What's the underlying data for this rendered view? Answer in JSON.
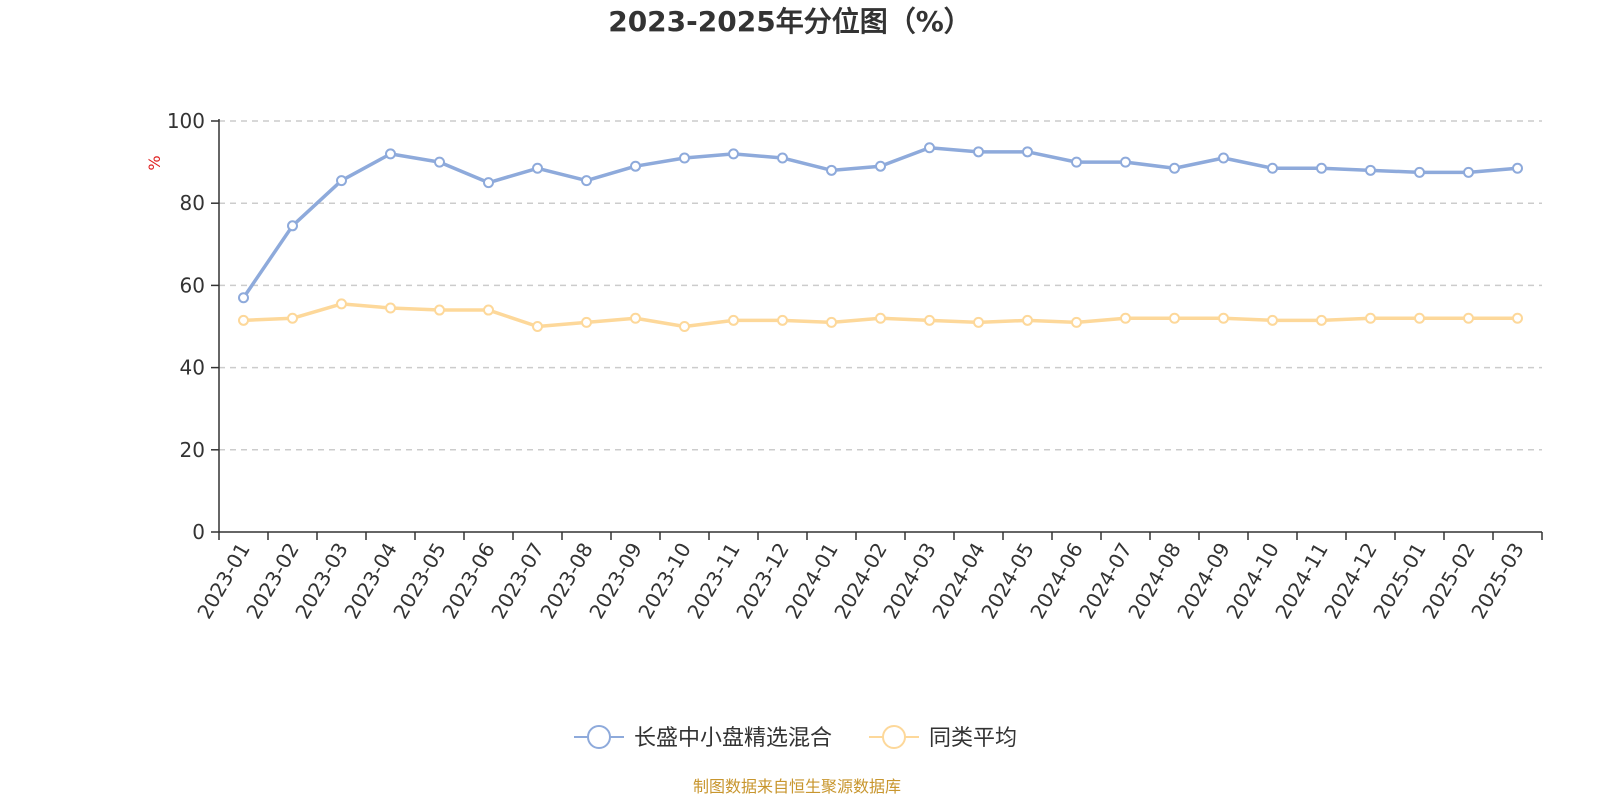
{
  "chart_data": {
    "type": "line",
    "title": "2023-2025年分位图（%）",
    "ylabel": "%",
    "xlabel": "",
    "ylim": [
      0,
      100
    ],
    "yticks": [
      0,
      20,
      40,
      60,
      80,
      100
    ],
    "grid": true,
    "legend_position": "bottom-center",
    "categories": [
      "2023-01",
      "2023-02",
      "2023-03",
      "2023-04",
      "2023-05",
      "2023-06",
      "2023-07",
      "2023-08",
      "2023-09",
      "2023-10",
      "2023-11",
      "2023-12",
      "2024-01",
      "2024-02",
      "2024-03",
      "2024-04",
      "2024-05",
      "2024-06",
      "2024-07",
      "2024-08",
      "2024-09",
      "2024-10",
      "2024-11",
      "2024-12",
      "2025-01",
      "2025-02",
      "2025-03"
    ],
    "series": [
      {
        "name": "长盛中小盘精选混合",
        "color": "#8eaadb",
        "values": [
          57,
          74.5,
          85.5,
          92,
          90,
          85,
          88.5,
          85.5,
          89,
          91,
          92,
          91,
          88,
          89,
          93.5,
          92.5,
          92.5,
          90,
          90,
          88.5,
          91,
          88.5,
          88.5,
          88,
          87.5,
          87.5,
          88.5
        ]
      },
      {
        "name": "同类平均",
        "color": "#fdd89a",
        "values": [
          51.5,
          52,
          55.5,
          54.5,
          54,
          54,
          50,
          51,
          52,
          50,
          51.5,
          51.5,
          51,
          52,
          51.5,
          51,
          51.5,
          51,
          52,
          52,
          52,
          51.5,
          51.5,
          52,
          52,
          52,
          52
        ]
      }
    ]
  },
  "source_text": "制图数据来自恒生聚源数据库",
  "colors": {
    "ylabel": "#e02020",
    "source": "#c8962e",
    "axis": "#333333",
    "grid": "#cccccc"
  }
}
